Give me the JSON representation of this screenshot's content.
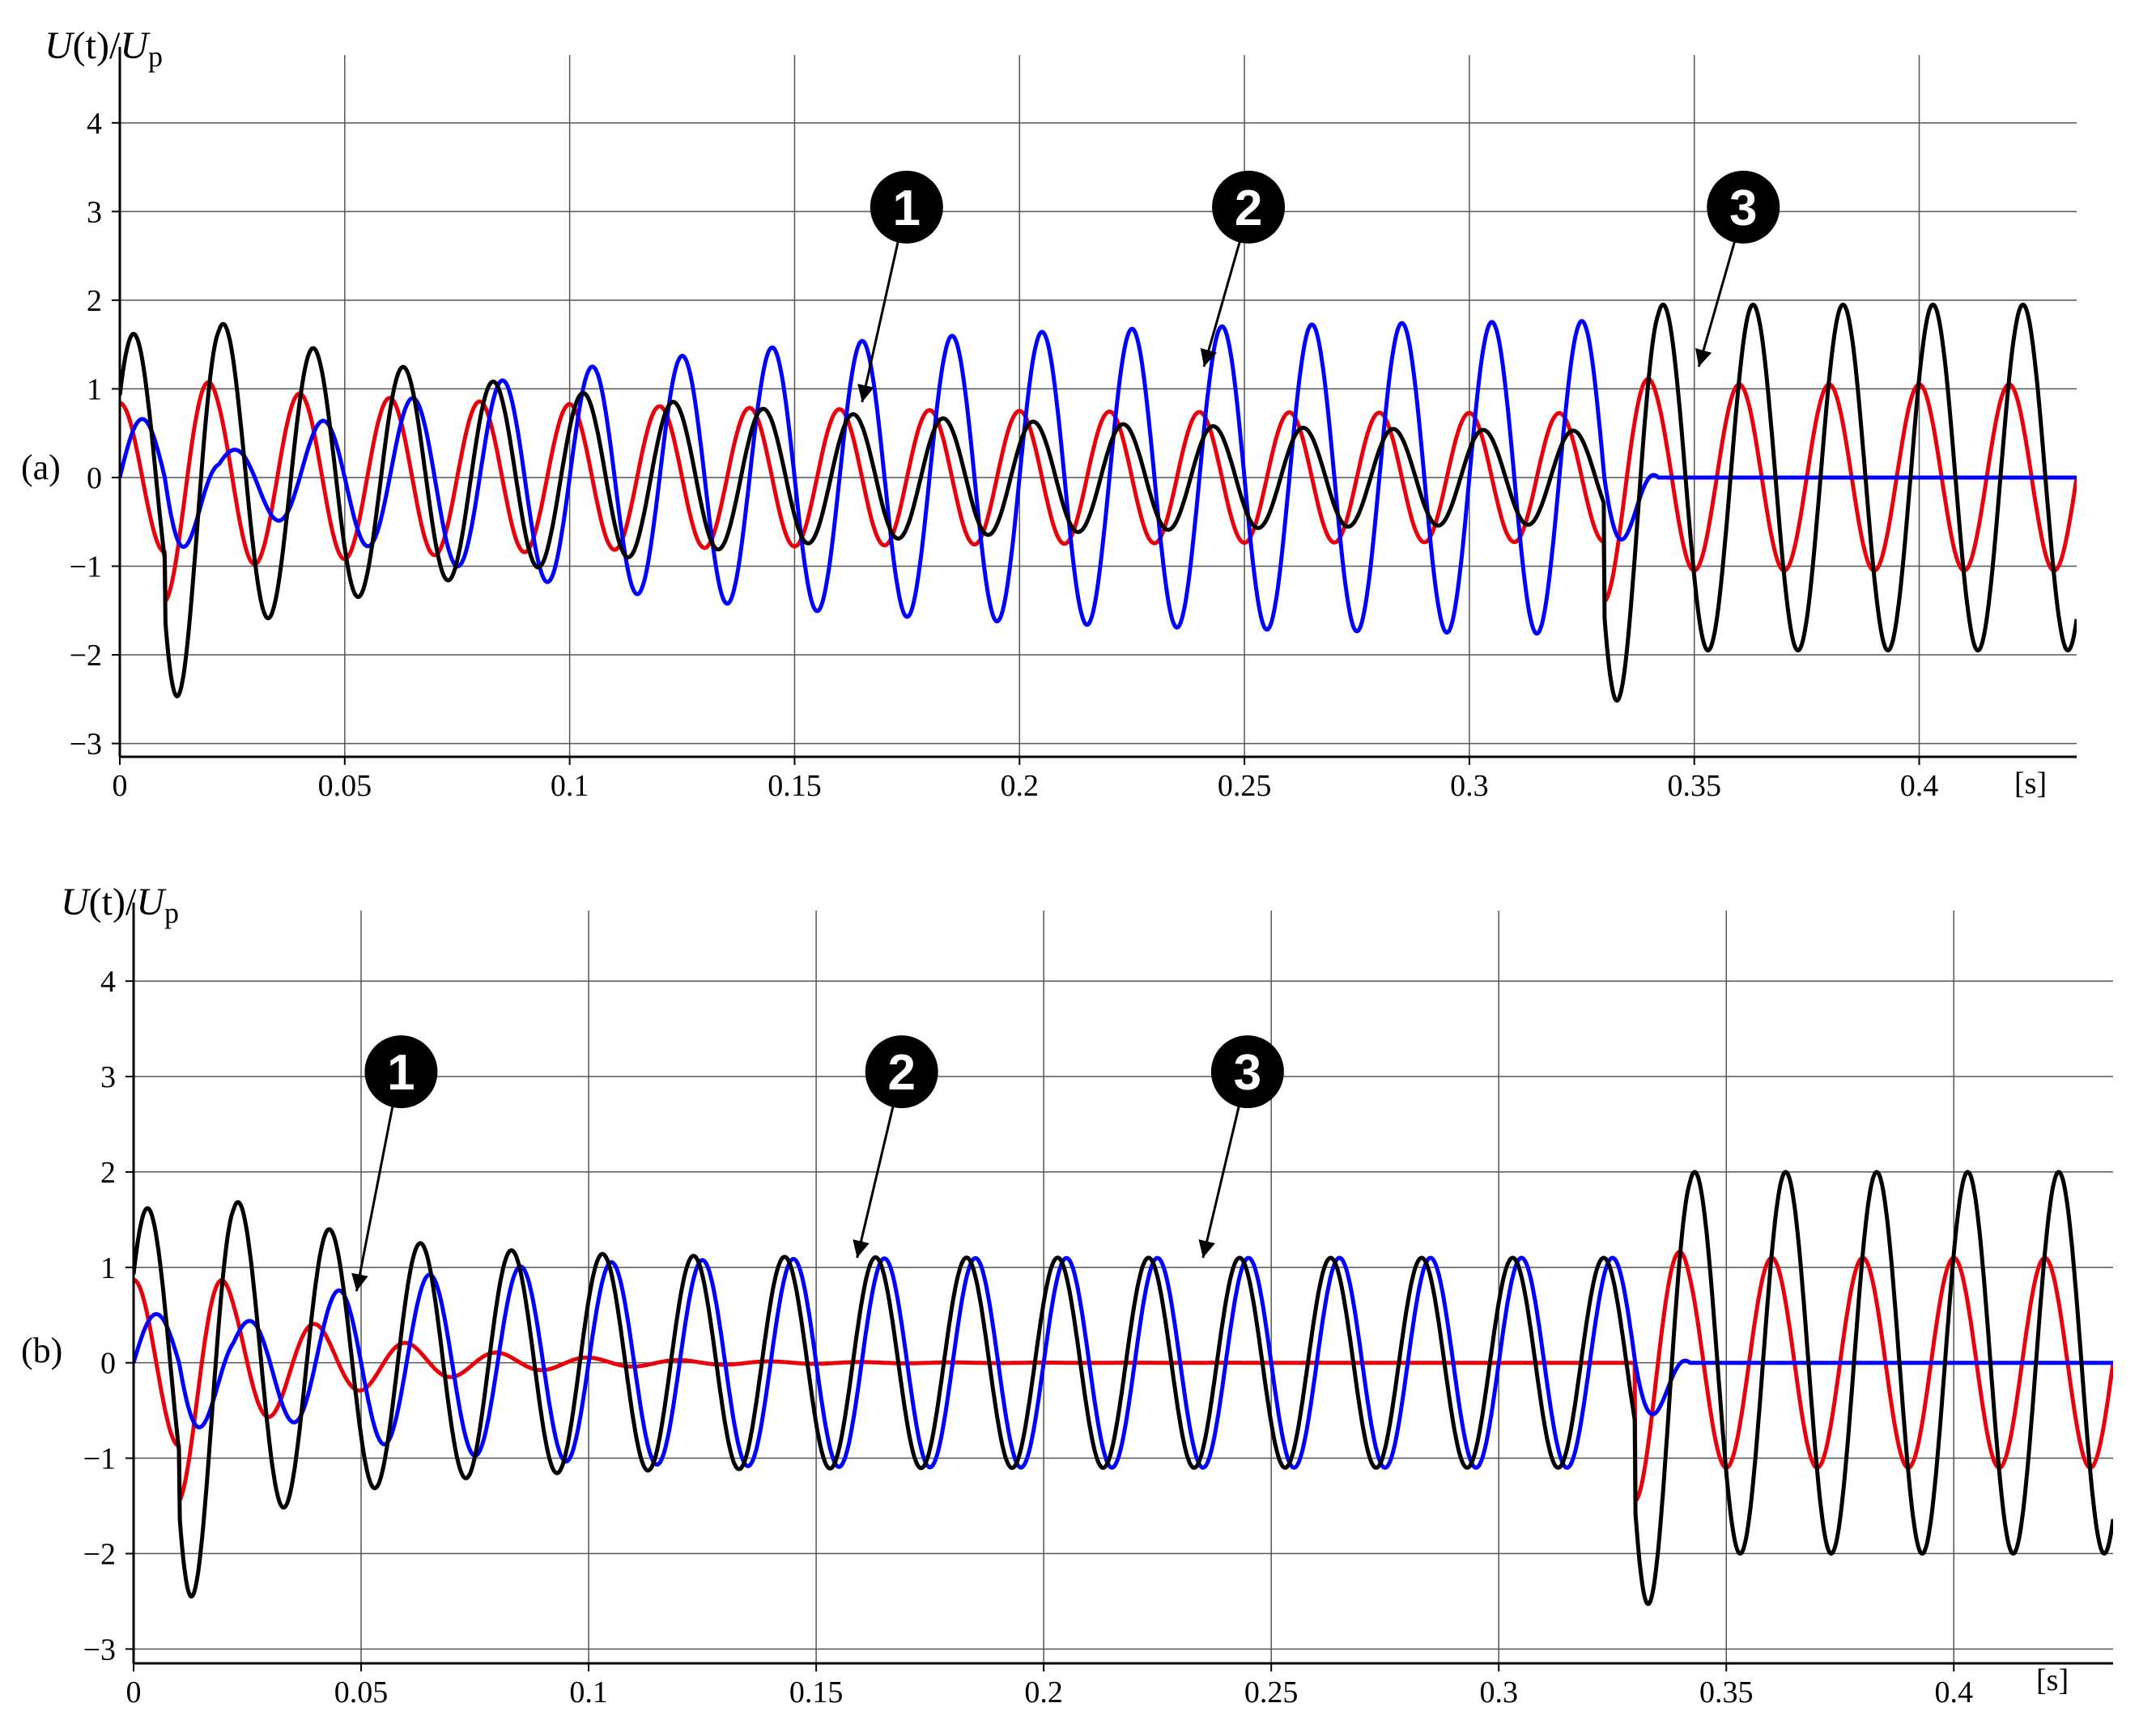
{
  "chart_data": [
    {
      "panel_label": "(a)",
      "type": "line",
      "ylabel": {
        "prefix": "U",
        "mid": "(t)/",
        "main": "U",
        "sub": "p"
      },
      "xlabel": "[s]",
      "xlim": [
        0,
        0.435
      ],
      "ylim": [
        -3.15,
        4.4
      ],
      "x_ticks": [
        0,
        0.05,
        0.1,
        0.15,
        0.2,
        0.25,
        0.3,
        0.35,
        0.4
      ],
      "x_tick_labels": [
        "0",
        "0.05",
        "0.1",
        "0.15",
        "0.2",
        "0.25",
        "0.3",
        "0.35",
        "0.4"
      ],
      "y_ticks": [
        -3,
        -2,
        -1,
        0,
        1,
        2,
        3,
        4
      ],
      "y_tick_labels": [
        "−3",
        "−2",
        "−1",
        "0",
        "1",
        "2",
        "3",
        "4"
      ],
      "grid": true,
      "frequency_hz": 50,
      "fault_interval_s": [
        0.01,
        0.33
      ],
      "series": [
        {
          "color": "#e8000b",
          "phase_deg": 90,
          "peak_start": 1.4,
          "steady_start": 1.05,
          "steady_end": 0.72,
          "steady_after": 1.05,
          "decay_s": 0.08
        },
        {
          "color": "#0000ff",
          "phase_deg": 0,
          "peak_start": 1.1,
          "steady_start": 0.0,
          "steady_end": 1.8,
          "steady_after": 0.0,
          "decay_s": 0.08
        },
        {
          "color": "#000000",
          "phase_deg": 35,
          "peak_start": 2.7,
          "steady_start": 1.95,
          "steady_end": 0.5,
          "steady_after": 1.95,
          "decay_s": 0.08
        }
      ],
      "markers": [
        {
          "label": "1",
          "target": [
            0.165,
            0.85
          ]
        },
        {
          "label": "2",
          "target": [
            0.241,
            1.25
          ]
        },
        {
          "label": "3",
          "target": [
            0.351,
            1.25
          ]
        }
      ]
    },
    {
      "panel_label": "(b)",
      "type": "line",
      "ylabel": {
        "prefix": "U",
        "mid": "(t)/",
        "main": "U",
        "sub": "p"
      },
      "xlabel": "[s]",
      "xlim": [
        0,
        0.435
      ],
      "ylim": [
        -3.15,
        4.4
      ],
      "x_ticks": [
        0,
        0.05,
        0.1,
        0.15,
        0.2,
        0.25,
        0.3,
        0.35,
        0.4
      ],
      "x_tick_labels": [
        "0",
        "0.05",
        "0.1",
        "0.15",
        "0.2",
        "0.25",
        "0.3",
        "0.35",
        "0.4"
      ],
      "y_ticks": [
        -3,
        -2,
        -1,
        0,
        1,
        2,
        3,
        4
      ],
      "y_tick_labels": [
        "−3",
        "−2",
        "−1",
        "0",
        "1",
        "2",
        "3",
        "4"
      ],
      "grid": true,
      "frequency_hz": 50,
      "fault_interval_s": [
        0.01,
        0.33
      ],
      "series": [
        {
          "color": "#e8000b",
          "phase_deg": 90,
          "peak_start": 1.45,
          "steady_start": 1.1,
          "steady_end": 0.0,
          "steady_after": 1.1,
          "decay_s": 0.03
        },
        {
          "color": "#0000ff",
          "phase_deg": 0,
          "peak_start": 0.85,
          "steady_start": 0.0,
          "steady_end": 1.1,
          "steady_after": 0.0,
          "decay_s": 0.03
        },
        {
          "color": "#000000",
          "phase_deg": 35,
          "peak_start": 2.7,
          "steady_start": 2.0,
          "steady_end": 1.1,
          "steady_after": 2.0,
          "decay_s": 0.03
        }
      ],
      "markers": [
        {
          "label": "1",
          "target": [
            0.049,
            0.75
          ]
        },
        {
          "label": "2",
          "target": [
            0.159,
            1.1
          ]
        },
        {
          "label": "3",
          "target": [
            0.235,
            1.1
          ]
        }
      ]
    }
  ]
}
